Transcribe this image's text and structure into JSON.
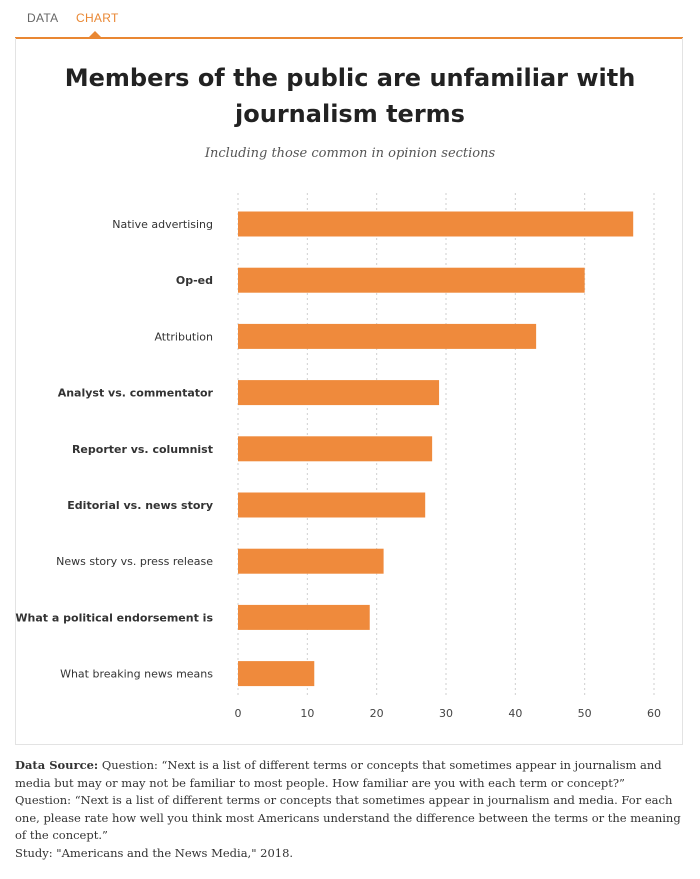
{
  "tabs": {
    "data_label": "DATA",
    "chart_label": "CHART",
    "active": "CHART"
  },
  "colors": {
    "accent": "#e98733",
    "bar": "#ef8a3c",
    "grid": "#cfcfcf"
  },
  "chart_data": {
    "type": "bar",
    "orientation": "horizontal",
    "title": "Members of the public are unfamiliar with journalism terms",
    "subtitle": "Including those common in opinion sections",
    "categories": [
      "Native advertising",
      "Op-ed",
      "Attribution",
      "Analyst vs. commentator",
      "Reporter vs. columnist",
      "Editorial vs. news story",
      "News story vs. press release",
      "What a political endorsement is",
      "What breaking news means"
    ],
    "bold_categories": [
      "Op-ed",
      "Analyst vs. commentator",
      "Reporter vs. columnist",
      "Editorial vs. news story",
      "What a political endorsement is"
    ],
    "values": [
      57,
      50,
      43,
      29,
      28,
      27,
      21,
      19,
      11
    ],
    "xlim": [
      0,
      60
    ],
    "xticks": [
      0,
      10,
      20,
      30,
      40,
      50,
      60
    ],
    "xlabel": "",
    "ylabel": "",
    "grid": "vertical dashed"
  },
  "footer": {
    "source_label": "Data Source:",
    "source_text": "Question: “Next is a list of different terms or concepts that sometimes appear in journalism and media but may or may not be familiar to most people. How familiar are you with each term or concept?”",
    "question2": "Question: “Next is a list of different terms or concepts that sometimes appear in journalism and media. For each one, please rate how well you think most Americans understand the difference between the terms or the meaning of the concept.”",
    "study": "Study: \"Americans and the News Media,\" 2018."
  }
}
